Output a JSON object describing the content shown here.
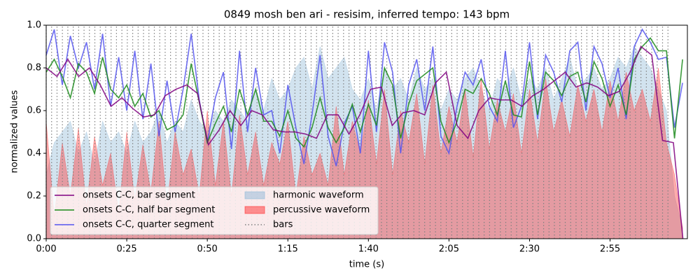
{
  "chart_data": {
    "type": "line",
    "title": "0849 mosh ben ari - resisim, inferred tempo: 143 bpm",
    "xlabel": "time (s)",
    "ylabel": "normalized values",
    "xlim": [
      0,
      199
    ],
    "ylim": [
      0,
      1
    ],
    "xticks": [
      {
        "value": 0,
        "label": "0:00"
      },
      {
        "value": 25,
        "label": "0:25"
      },
      {
        "value": 50,
        "label": "0:50"
      },
      {
        "value": 75,
        "label": "1:15"
      },
      {
        "value": 100,
        "label": "1:40"
      },
      {
        "value": 125,
        "label": "2:05"
      },
      {
        "value": 150,
        "label": "2:30"
      },
      {
        "value": 175,
        "label": "2:55"
      }
    ],
    "yticks": [
      {
        "value": 0,
        "label": "0.0"
      },
      0.2,
      0.4,
      0.6,
      0.8,
      {
        "value": 1,
        "label": "1.0"
      }
    ],
    "legend": "lower left",
    "x": [
      0,
      2.5,
      5,
      7.5,
      10,
      12.5,
      15,
      17.5,
      20,
      22.5,
      25,
      27.5,
      30,
      32.5,
      35,
      37.5,
      40,
      42.5,
      45,
      47.5,
      50,
      52.5,
      55,
      57.5,
      60,
      62.5,
      65,
      67.5,
      70,
      72.5,
      75,
      77.5,
      80,
      82.5,
      85,
      87.5,
      90,
      92.5,
      95,
      97.5,
      100,
      102.5,
      105,
      107.5,
      110,
      112.5,
      115,
      117.5,
      120,
      122.5,
      125,
      127.5,
      130,
      132.5,
      135,
      137.5,
      140,
      142.5,
      145,
      147.5,
      150,
      152.5,
      155,
      157.5,
      160,
      162.5,
      165,
      167.5,
      170,
      172.5,
      175,
      177.5,
      180,
      182.5,
      185,
      187.5,
      190,
      192.5,
      195,
      197.5
    ],
    "series": [
      {
        "name": "onsets C-C, bar segment",
        "color": "#800080",
        "kind": "line",
        "x": [
          0,
          3.36,
          6.71,
          10.07,
          13.42,
          16.78,
          20.14,
          23.49,
          26.85,
          30.2,
          33.56,
          36.92,
          40.27,
          43.63,
          46.98,
          50.34,
          53.7,
          57.05,
          60.41,
          63.76,
          67.12,
          70.48,
          73.83,
          77.19,
          80.54,
          83.9,
          87.26,
          90.61,
          93.97,
          97.32,
          100.68,
          104.04,
          107.39,
          110.75,
          114.1,
          117.46,
          120.82,
          124.17,
          127.53,
          130.88,
          134.24,
          137.6,
          140.95,
          144.31,
          147.66,
          151.02,
          154.38,
          157.73,
          161.09,
          164.44,
          167.8,
          171.16,
          174.51,
          177.87,
          181.22,
          184.58,
          187.94,
          191.29,
          194.65,
          197.6
        ],
        "values": [
          0.8,
          0.76,
          0.84,
          0.76,
          0.8,
          0.72,
          0.62,
          0.66,
          0.61,
          0.57,
          0.58,
          0.67,
          0.7,
          0.72,
          0.68,
          0.44,
          0.51,
          0.6,
          0.53,
          0.6,
          0.58,
          0.51,
          0.5,
          0.5,
          0.49,
          0.47,
          0.58,
          0.58,
          0.49,
          0.58,
          0.7,
          0.71,
          0.53,
          0.59,
          0.6,
          0.58,
          0.73,
          0.78,
          0.53,
          0.47,
          0.6,
          0.66,
          0.65,
          0.65,
          0.62,
          0.67,
          0.7,
          0.74,
          0.78,
          0.71,
          0.73,
          0.71,
          0.67,
          0.69,
          0.78,
          0.9,
          0.86,
          0.46,
          0.45,
          0
        ]
      },
      {
        "name": "onsets C-C, half bar segment",
        "color": "#1a8a1a",
        "kind": "line",
        "values": [
          0.78,
          0.84,
          0.76,
          0.66,
          0.82,
          0.78,
          0.68,
          0.85,
          0.7,
          0.66,
          0.72,
          0.62,
          0.68,
          0.57,
          0.6,
          0.51,
          0.53,
          0.58,
          0.82,
          0.64,
          0.45,
          0.54,
          0.62,
          0.5,
          0.7,
          0.58,
          0.7,
          0.55,
          0.55,
          0.48,
          0.6,
          0.47,
          0.43,
          0.52,
          0.66,
          0.52,
          0.45,
          0.52,
          0.63,
          0.5,
          0.63,
          0.53,
          0.8,
          0.72,
          0.47,
          0.63,
          0.74,
          0.77,
          0.8,
          0.55,
          0.45,
          0.55,
          0.7,
          0.68,
          0.75,
          0.68,
          0.58,
          0.74,
          0.58,
          0.57,
          0.83,
          0.58,
          0.78,
          0.74,
          0.67,
          0.76,
          0.78,
          0.64,
          0.83,
          0.75,
          0.62,
          0.72,
          0.58,
          0.84,
          0.9,
          0.94,
          0.88,
          0.88,
          0.47,
          0.84
        ]
      },
      {
        "name": "onsets C-C, quarter segment",
        "color": "#5555ee",
        "kind": "line",
        "values": [
          0.86,
          0.98,
          0.72,
          0.95,
          0.8,
          0.92,
          0.7,
          0.96,
          0.62,
          0.85,
          0.6,
          0.88,
          0.56,
          0.82,
          0.48,
          0.74,
          0.5,
          0.7,
          0.96,
          0.65,
          0.45,
          0.66,
          0.78,
          0.42,
          0.88,
          0.5,
          0.8,
          0.58,
          0.6,
          0.4,
          0.72,
          0.52,
          0.35,
          0.58,
          0.86,
          0.48,
          0.34,
          0.54,
          0.62,
          0.4,
          0.88,
          0.5,
          0.92,
          0.78,
          0.4,
          0.72,
          0.84,
          0.6,
          0.9,
          0.48,
          0.4,
          0.62,
          0.78,
          0.72,
          0.84,
          0.62,
          0.55,
          0.88,
          0.52,
          0.62,
          0.92,
          0.56,
          0.86,
          0.78,
          0.64,
          0.88,
          0.92,
          0.6,
          0.9,
          0.82,
          0.66,
          0.8,
          0.56,
          0.9,
          0.98,
          0.92,
          0.84,
          0.85,
          0.52,
          0.73
        ]
      },
      {
        "name": "harmonic waveform",
        "color": "#8fb8d8",
        "kind": "area",
        "values": [
          0.3,
          0.45,
          0.5,
          0.55,
          0.4,
          0.5,
          0.35,
          0.55,
          0.45,
          0.5,
          0.4,
          0.55,
          0.45,
          0.5,
          0.6,
          0.45,
          0.55,
          0.5,
          0.65,
          0.55,
          0.5,
          0.6,
          0.55,
          0.65,
          0.6,
          0.55,
          0.7,
          0.6,
          0.75,
          0.65,
          0.7,
          0.8,
          0.85,
          0.7,
          0.9,
          0.75,
          0.8,
          0.85,
          0.7,
          0.65,
          0.75,
          0.6,
          0.8,
          0.7,
          0.75,
          0.65,
          0.8,
          0.7,
          0.75,
          0.6,
          0.7,
          0.65,
          0.75,
          0.8,
          0.7,
          0.6,
          0.75,
          0.7,
          0.8,
          0.65,
          0.75,
          0.7,
          0.8,
          0.65,
          0.75,
          0.85,
          0.7,
          0.75,
          0.8,
          0.7,
          0.75,
          0.85,
          0.8,
          0.9,
          0.85,
          0.8,
          0.7,
          0.6,
          0.2,
          0.05
        ]
      },
      {
        "name": "percussive waveform",
        "color": "#ff3030",
        "kind": "area",
        "values": [
          0.55,
          0.1,
          0.45,
          0.2,
          0.52,
          0.15,
          0.48,
          0.25,
          0.4,
          0.12,
          0.5,
          0.18,
          0.44,
          0.22,
          0.55,
          0.15,
          0.5,
          0.3,
          0.42,
          0.2,
          0.6,
          0.25,
          0.55,
          0.2,
          0.58,
          0.3,
          0.5,
          0.25,
          0.45,
          0.35,
          0.55,
          0.2,
          0.48,
          0.3,
          0.4,
          0.25,
          0.62,
          0.3,
          0.55,
          0.4,
          0.65,
          0.35,
          0.7,
          0.3,
          0.6,
          0.45,
          0.68,
          0.35,
          0.72,
          0.4,
          0.62,
          0.45,
          0.7,
          0.38,
          0.75,
          0.42,
          0.65,
          0.5,
          0.68,
          0.4,
          0.7,
          0.45,
          0.75,
          0.5,
          0.65,
          0.48,
          0.72,
          0.55,
          0.7,
          0.5,
          0.74,
          0.55,
          0.78,
          0.6,
          0.7,
          0.55,
          0.8,
          0.45,
          0.3,
          0.05
        ]
      },
      {
        "name": "bars",
        "color": "#808080",
        "kind": "vline",
        "x": [
          0,
          1.68,
          3.36,
          5.03,
          6.71,
          8.39,
          10.07,
          11.75,
          13.42,
          15.1,
          16.78,
          18.46,
          20.14,
          21.81,
          23.49,
          25.17,
          26.85,
          28.53,
          30.2,
          31.88,
          33.56,
          35.24,
          36.92,
          38.59,
          40.27,
          41.95,
          43.63,
          45.31,
          46.98,
          48.66,
          50.34,
          52.02,
          53.7,
          55.37,
          57.05,
          58.73,
          60.41,
          62.09,
          63.76,
          65.44,
          67.12,
          68.8,
          70.48,
          72.15,
          73.83,
          75.51,
          77.19,
          78.87,
          80.54,
          82.22,
          83.9,
          85.58,
          87.26,
          88.93,
          90.61,
          92.29,
          93.97,
          95.65,
          97.32,
          99,
          100.68,
          102.36,
          104.04,
          105.71,
          107.39,
          109.07,
          110.75,
          112.43,
          114.1,
          115.78,
          117.46,
          119.14,
          120.82,
          122.49,
          124.17,
          125.85,
          127.53,
          129.21,
          130.88,
          132.56,
          134.24,
          135.92,
          137.6,
          139.27,
          140.95,
          142.63,
          144.31,
          145.99,
          147.66,
          149.34,
          151.02,
          152.7,
          154.38,
          156.05,
          157.73,
          159.41,
          161.09,
          162.77,
          164.44,
          166.12,
          167.8,
          169.48,
          171.16,
          172.83,
          174.51,
          176.19,
          177.87,
          179.55,
          181.22,
          182.9,
          184.58,
          186.26,
          187.94,
          189.61,
          191.29,
          192.97
        ]
      }
    ]
  }
}
